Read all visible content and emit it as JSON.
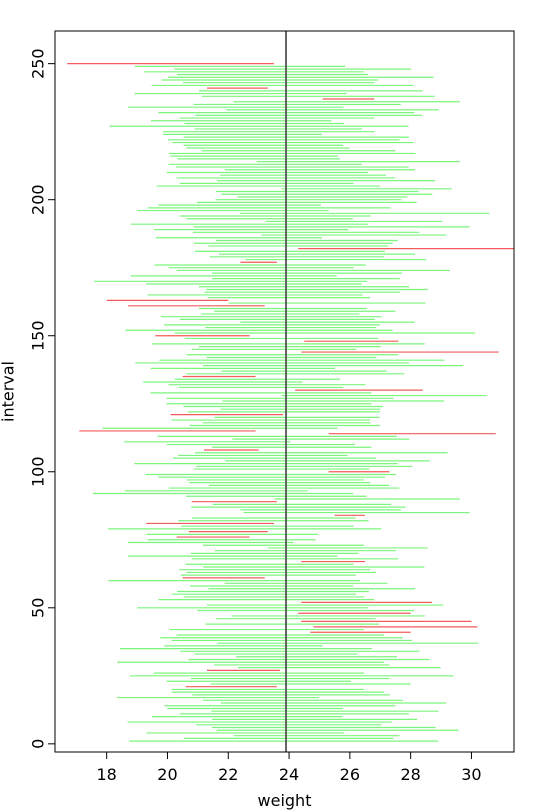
{
  "chart_data": {
    "type": "interval",
    "title": "",
    "xlabel": "weight",
    "ylabel": "interval",
    "xlim": [
      16.3,
      31.4
    ],
    "ylim": [
      -3,
      262
    ],
    "x_ticks": [
      18,
      20,
      22,
      24,
      26,
      28,
      30
    ],
    "y_ticks": [
      0,
      50,
      100,
      150,
      200,
      250
    ],
    "reference_line": 23.9,
    "colors": {
      "covering": "#7CF57C",
      "missing": "#F25C5C",
      "reference": "#555555"
    },
    "n_intervals": 250,
    "seed": 7,
    "missing_intervals": [
      {
        "y": 250,
        "low": 16.7,
        "high": 23.5
      },
      {
        "y": 241,
        "low": 21.3,
        "high": 23.3
      },
      {
        "y": 237,
        "low": 25.1,
        "high": 26.8
      },
      {
        "y": 182,
        "low": 24.3,
        "high": 31.4
      },
      {
        "y": 177,
        "low": 22.4,
        "high": 23.6
      },
      {
        "y": 163,
        "low": 18.0,
        "high": 22.0
      },
      {
        "y": 161,
        "low": 18.7,
        "high": 23.2
      },
      {
        "y": 150,
        "low": 19.6,
        "high": 22.7
      },
      {
        "y": 148,
        "low": 24.5,
        "high": 27.6
      },
      {
        "y": 144,
        "low": 24.4,
        "high": 30.9
      },
      {
        "y": 135,
        "low": 20.5,
        "high": 22.9
      },
      {
        "y": 130,
        "low": 24.2,
        "high": 28.4
      },
      {
        "y": 121,
        "low": 20.1,
        "high": 23.8
      },
      {
        "y": 115,
        "low": 17.1,
        "high": 22.9
      },
      {
        "y": 114,
        "low": 25.3,
        "high": 30.8
      },
      {
        "y": 108,
        "low": 21.2,
        "high": 23.0
      },
      {
        "y": 100,
        "low": 25.3,
        "high": 27.3
      },
      {
        "y": 89,
        "low": 20.8,
        "high": 23.6
      },
      {
        "y": 84,
        "low": 25.5,
        "high": 26.5
      },
      {
        "y": 81,
        "low": 19.3,
        "high": 23.5
      },
      {
        "y": 78,
        "low": 20.7,
        "high": 23.3
      },
      {
        "y": 76,
        "low": 20.3,
        "high": 22.7
      },
      {
        "y": 67,
        "low": 24.4,
        "high": 26.5
      },
      {
        "y": 61,
        "low": 20.5,
        "high": 23.2
      },
      {
        "y": 52,
        "low": 24.4,
        "high": 28.7
      },
      {
        "y": 48,
        "low": 24.3,
        "high": 28.0
      },
      {
        "y": 45,
        "low": 24.4,
        "high": 30.0
      },
      {
        "y": 43,
        "low": 24.8,
        "high": 30.2
      },
      {
        "y": 41,
        "low": 24.7,
        "high": 28.0
      },
      {
        "y": 27,
        "low": 21.3,
        "high": 23.7
      },
      {
        "y": 21,
        "low": 20.6,
        "high": 23.6
      }
    ]
  }
}
